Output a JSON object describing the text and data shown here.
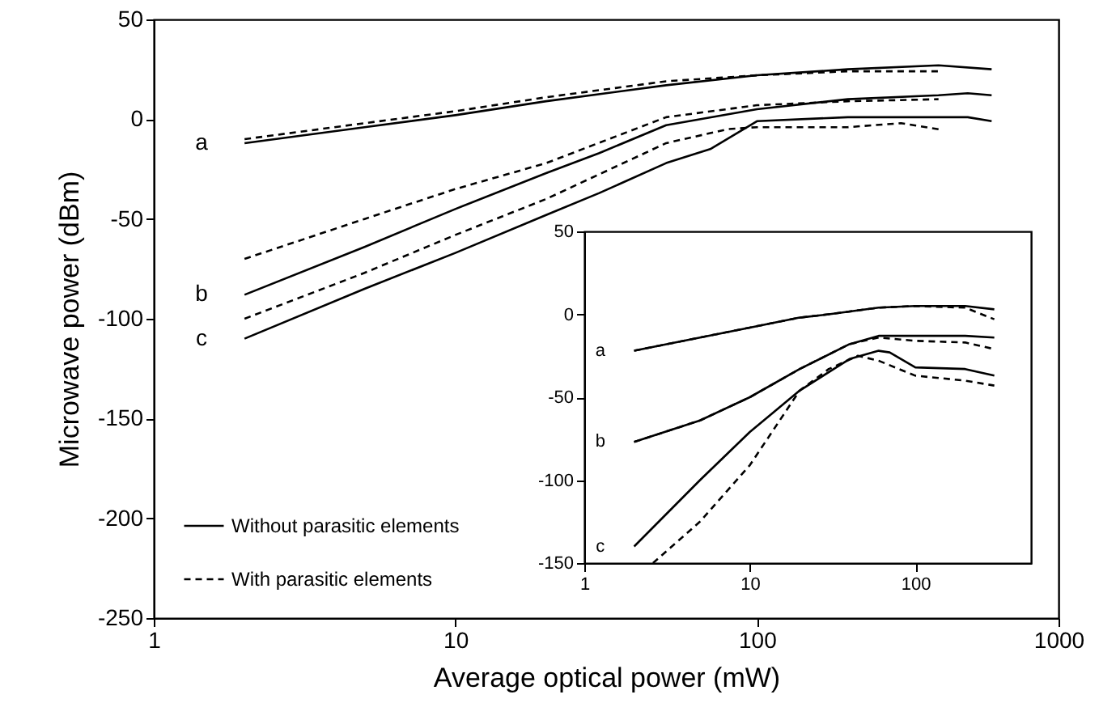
{
  "chart_data": [
    {
      "type": "line",
      "xlabel": "Average optical power (mW)",
      "ylabel": "Microwave power (dBm)",
      "log": "x",
      "xlim": [
        1,
        1000
      ],
      "xticks": [
        1,
        10,
        100,
        1000
      ],
      "ylim": [
        -250,
        50
      ],
      "yticks": [
        -250,
        -200,
        -150,
        -100,
        -50,
        0,
        50
      ],
      "grid": false,
      "legend": "bottom left",
      "annotations": [
        "a",
        "b",
        "c"
      ],
      "series": [
        {
          "name": "Without parasitic elements",
          "color": "#000000",
          "line_style": "solid",
          "x": [
            2,
            5,
            10,
            20,
            50,
            100,
            200,
            400,
            600
          ],
          "values": [
            -12,
            -4,
            2,
            9,
            17,
            22,
            25,
            27,
            25
          ]
        },
        {
          "name": "With parasitic elements",
          "color": "#000000",
          "line_style": "dashed",
          "x": [
            2,
            5,
            10,
            20,
            50,
            100,
            200,
            400
          ],
          "values": [
            -10,
            -2,
            4,
            11,
            19,
            22,
            24,
            24
          ]
        },
        {
          "color": "#000000",
          "line_style": "solid",
          "x": [
            2,
            5,
            10,
            20,
            30,
            50,
            100,
            200,
            400,
            500,
            600
          ],
          "values": [
            -88,
            -64,
            -45,
            -27,
            -17,
            -3,
            5,
            10,
            12,
            13,
            12
          ]
        },
        {
          "color": "#000000",
          "line_style": "dashed",
          "x": [
            2,
            5,
            10,
            20,
            50,
            100,
            200,
            400
          ],
          "values": [
            -70,
            -50,
            -35,
            -22,
            1,
            7,
            9,
            10
          ]
        },
        {
          "color": "#000000",
          "line_style": "solid",
          "x": [
            2,
            5,
            10,
            20,
            30,
            50,
            70,
            100,
            200,
            500,
            600
          ],
          "values": [
            -110,
            -85,
            -67,
            -48,
            -37,
            -22,
            -15,
            -1,
            1,
            1,
            -1
          ]
        },
        {
          "color": "#000000",
          "line_style": "dashed",
          "x": [
            2,
            5,
            10,
            20,
            50,
            80,
            100,
            200,
            300,
            400
          ],
          "values": [
            -100,
            -77,
            -58,
            -40,
            -12,
            -5,
            -4,
            -4,
            -2,
            -5
          ]
        }
      ]
    },
    {
      "type": "line",
      "log": "x",
      "xlim": [
        1,
        500
      ],
      "xticks": [
        1,
        10,
        100
      ],
      "ylim": [
        -150,
        50
      ],
      "yticks": [
        -150,
        -100,
        -50,
        0,
        50
      ],
      "grid": false,
      "annotations": [
        "a",
        "b",
        "c"
      ],
      "series": [
        {
          "color": "#000000",
          "line_style": "solid",
          "x": [
            2,
            5,
            10,
            20,
            30,
            60,
            100,
            200,
            300
          ],
          "values": [
            -22,
            -14,
            -8,
            -2,
            0,
            4,
            5,
            5,
            3
          ]
        },
        {
          "color": "#000000",
          "line_style": "dashed",
          "x": [
            2,
            5,
            10,
            20,
            30,
            60,
            100,
            200,
            300
          ],
          "values": [
            -22,
            -14,
            -8,
            -2,
            0,
            4,
            5,
            4,
            -3
          ]
        },
        {
          "color": "#000000",
          "line_style": "solid",
          "x": [
            2,
            5,
            10,
            20,
            40,
            60,
            100,
            200,
            300
          ],
          "values": [
            -77,
            -64,
            -50,
            -33,
            -18,
            -13,
            -13,
            -13,
            -14
          ]
        },
        {
          "color": "#000000",
          "line_style": "dashed",
          "x": [
            2,
            5,
            10,
            20,
            40,
            60,
            100,
            200,
            300
          ],
          "values": [
            -77,
            -64,
            -50,
            -33,
            -18,
            -14,
            -16,
            -17,
            -21
          ]
        },
        {
          "color": "#000000",
          "line_style": "solid",
          "x": [
            2,
            5,
            10,
            20,
            40,
            60,
            70,
            100,
            200,
            300
          ],
          "values": [
            -140,
            -100,
            -71,
            -46,
            -27,
            -22,
            -23,
            -32,
            -33,
            -37
          ]
        },
        {
          "color": "#000000",
          "line_style": "dashed",
          "x": [
            2.6,
            5,
            10,
            20,
            30,
            45,
            60,
            100,
            200,
            300
          ],
          "values": [
            -150,
            -125,
            -91,
            -46,
            -33,
            -25,
            -28,
            -37,
            -40,
            -43
          ]
        }
      ]
    }
  ]
}
